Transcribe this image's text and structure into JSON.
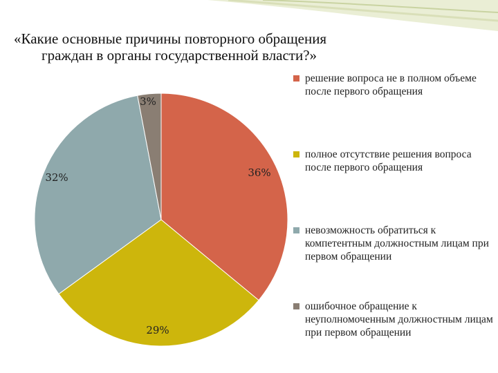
{
  "slide": {
    "title_line1": "«Какие основные причины повторного обращения",
    "title_line2": "граждан в органы государственной власти?»"
  },
  "chart_data": {
    "type": "pie",
    "categories": [
      "решение вопроса не в полном объеме после первого обращения",
      "полное отсутствие решения вопроса после первого обращения",
      "невозможность обратиться к компетентным должностным лицам при первом обращении",
      "ошибочное обращение к неуполномоченным должностным лицам при первом обращении"
    ],
    "values": [
      36,
      29,
      32,
      3
    ],
    "data_labels": [
      "36%",
      "29%",
      "32%",
      "3%"
    ],
    "colors": [
      "#D4644A",
      "#CDB60C",
      "#8FA9AC",
      "#8A7E73"
    ],
    "legend_position": "right"
  }
}
